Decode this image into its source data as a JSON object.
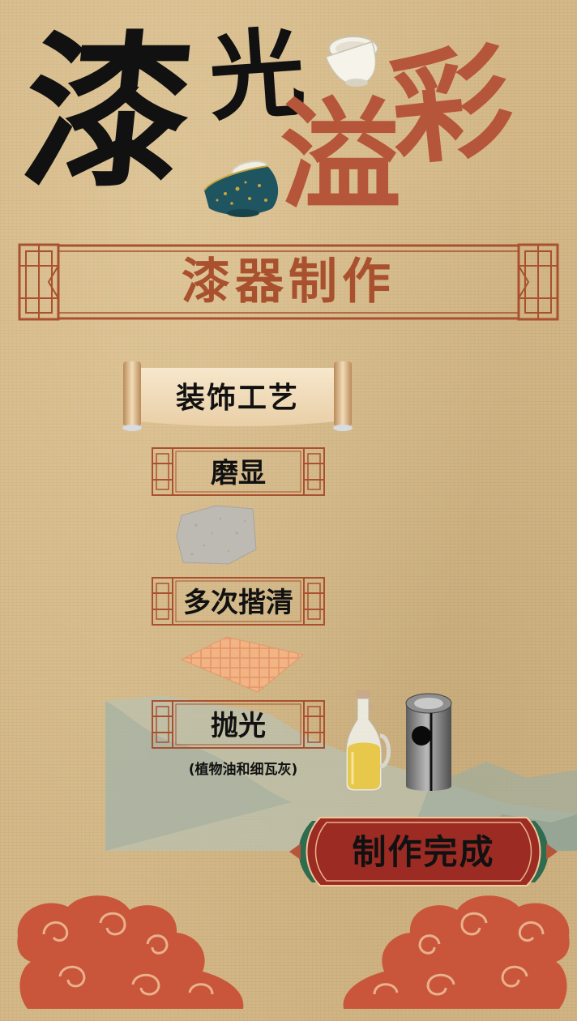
{
  "title": {
    "char1": "漆",
    "char2": "光",
    "char3": "溢",
    "char4": "彩"
  },
  "banner": {
    "text": "漆器制作"
  },
  "section": {
    "label": "装饰工艺"
  },
  "steps": [
    {
      "label": "磨显",
      "tool_icon": "whetstone-icon"
    },
    {
      "label": "多次揩清",
      "tool_icon": "cloth-icon"
    },
    {
      "label": "抛光",
      "tool_icon": "oil-bottle-icon",
      "note": "(植物油和细瓦灰)"
    }
  ],
  "done_button": {
    "label": "制作完成"
  },
  "colors": {
    "accent_red": "#b5553a",
    "button_red": "#9c2b24",
    "button_green": "#2f6b4f",
    "paper": "#d4b888"
  }
}
